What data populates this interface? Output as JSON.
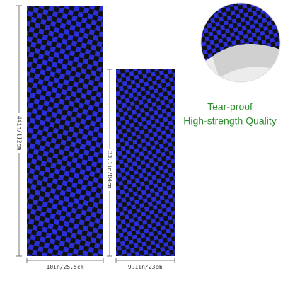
{
  "dimensions": {
    "large_height": "44in/112cm",
    "large_width": "10in/25.5cm",
    "small_height": "33.1in/84cm",
    "small_width": "9.1in/23cm"
  },
  "features": {
    "line1": "Tear-proof",
    "line2": "High-strength Quality"
  }
}
